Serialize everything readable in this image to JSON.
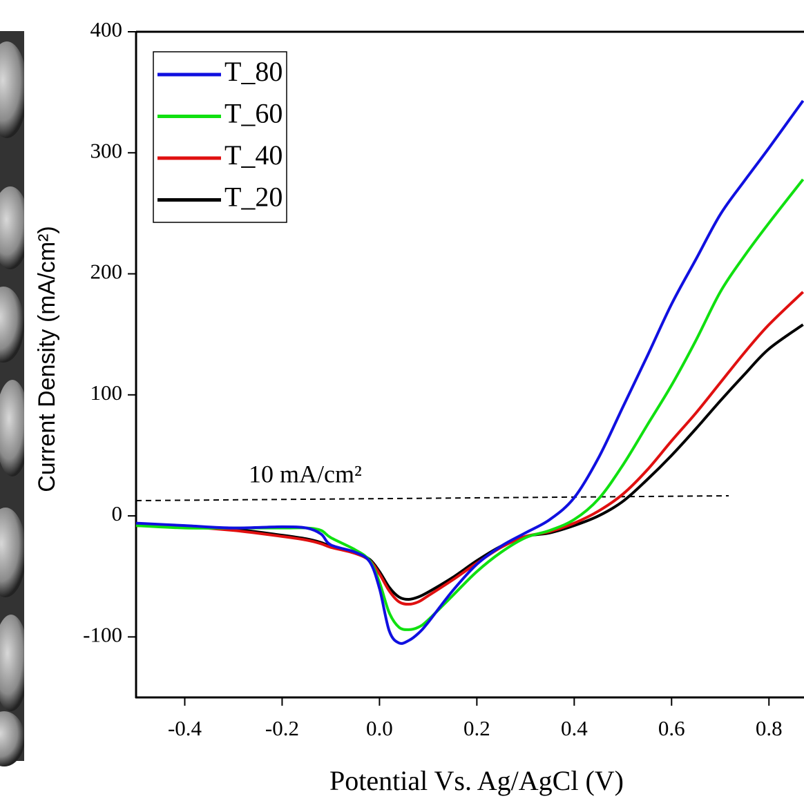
{
  "chart_data": {
    "type": "line",
    "y_label": "Current Density (mA/cm²)",
    "x_label": "Potential Vs. Ag/AgCl (V)",
    "annotation": "10 mA/cm²",
    "x": [
      -0.5,
      -0.4,
      -0.3,
      -0.2,
      -0.15,
      -0.12,
      -0.1,
      -0.05,
      -0.02,
      0,
      0.02,
      0.04,
      0.06,
      0.08,
      0.1,
      0.15,
      0.2,
      0.25,
      0.3,
      0.35,
      0.4,
      0.45,
      0.5,
      0.55,
      0.6,
      0.65,
      0.7,
      0.75,
      0.8,
      0.87
    ],
    "series": [
      {
        "name": "T_80",
        "color": "#1010e0",
        "values": [
          -6,
          -8,
          -10,
          -9,
          -10,
          -15,
          -24,
          -30,
          -38,
          -60,
          -95,
          -105,
          -103,
          -97,
          -88,
          -62,
          -40,
          -25,
          -14,
          -3,
          15,
          48,
          90,
          132,
          175,
          212,
          249,
          277,
          304,
          343
        ]
      },
      {
        "name": "T_60",
        "color": "#10e010",
        "values": [
          -8,
          -10,
          -10,
          -10,
          -10,
          -12,
          -18,
          -28,
          -37,
          -55,
          -80,
          -92,
          -94,
          -92,
          -86,
          -66,
          -46,
          -30,
          -18,
          -12,
          -3,
          14,
          42,
          75,
          108,
          145,
          185,
          215,
          242,
          278
        ]
      },
      {
        "name": "T_40",
        "color": "#e01010",
        "values": [
          -8,
          -9,
          -12,
          -17,
          -20,
          -23,
          -26,
          -31,
          -37,
          -48,
          -62,
          -71,
          -73,
          -71,
          -66,
          -53,
          -39,
          -26,
          -17,
          -13,
          -6,
          4,
          18,
          38,
          62,
          85,
          110,
          135,
          158,
          185
        ]
      },
      {
        "name": "T_20",
        "color": "#000000",
        "values": [
          -8,
          -9,
          -11,
          -16,
          -19,
          -22,
          -25,
          -30,
          -36,
          -46,
          -59,
          -67,
          -69,
          -67,
          -63,
          -51,
          -37,
          -25,
          -17,
          -14,
          -8,
          0,
          12,
          30,
          50,
          72,
          95,
          117,
          138,
          158
        ]
      }
    ],
    "xlim": [
      -0.5,
      0.872
    ],
    "xticks": [
      -0.4,
      -0.2,
      {
        "value": 0,
        "label": "0.0"
      },
      0.2,
      0.4,
      0.6,
      0.8
    ],
    "ylim": [
      -150,
      400
    ],
    "yticks": [
      -100,
      0,
      100,
      200,
      300,
      400
    ],
    "legend": "upper-left"
  }
}
